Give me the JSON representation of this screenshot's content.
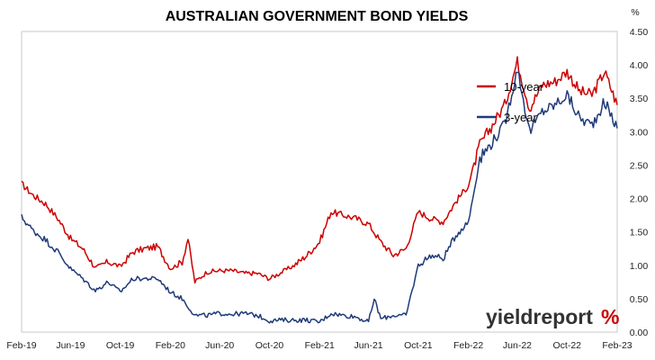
{
  "chart_data": {
    "type": "line",
    "title": "AUSTRALIAN GOVERNMENT BOND YIELDS",
    "y_unit": "%",
    "ylim": [
      0,
      4.5
    ],
    "y_ticks": [
      "0.00",
      "0.50",
      "1.00",
      "1.50",
      "2.00",
      "2.50",
      "3.00",
      "3.50",
      "4.00",
      "4.50"
    ],
    "x_ticks": [
      "Feb-19",
      "Jun-19",
      "Oct-19",
      "Feb-20",
      "Jun-20",
      "Oct-20",
      "Feb-21",
      "Jun-21",
      "Oct-21",
      "Feb-22",
      "Jun-22",
      "Oct-22",
      "Feb-23"
    ],
    "x_range": [
      "2019-02",
      "2023-02"
    ],
    "grid": false,
    "legend_position": "top-right inside plot",
    "series": [
      {
        "name": "10-year",
        "color": "#cc0000",
        "points": [
          [
            "2019-02-01",
            2.22
          ],
          [
            "2019-03-01",
            2.05
          ],
          [
            "2019-04-01",
            1.92
          ],
          [
            "2019-05-01",
            1.7
          ],
          [
            "2019-06-01",
            1.4
          ],
          [
            "2019-07-01",
            1.25
          ],
          [
            "2019-08-01",
            0.96
          ],
          [
            "2019-09-01",
            1.05
          ],
          [
            "2019-10-01",
            0.98
          ],
          [
            "2019-11-01",
            1.2
          ],
          [
            "2019-12-01",
            1.25
          ],
          [
            "2020-01-01",
            1.28
          ],
          [
            "2020-02-01",
            0.95
          ],
          [
            "2020-03-01",
            1.05
          ],
          [
            "2020-03-15",
            1.4
          ],
          [
            "2020-04-01",
            0.75
          ],
          [
            "2020-05-01",
            0.9
          ],
          [
            "2020-06-01",
            0.92
          ],
          [
            "2020-07-01",
            0.92
          ],
          [
            "2020-08-01",
            0.88
          ],
          [
            "2020-09-01",
            0.88
          ],
          [
            "2020-10-01",
            0.8
          ],
          [
            "2020-11-01",
            0.9
          ],
          [
            "2020-12-01",
            1.0
          ],
          [
            "2021-01-01",
            1.15
          ],
          [
            "2021-02-01",
            1.35
          ],
          [
            "2021-03-01",
            1.8
          ],
          [
            "2021-04-01",
            1.75
          ],
          [
            "2021-05-01",
            1.7
          ],
          [
            "2021-06-01",
            1.62
          ],
          [
            "2021-07-01",
            1.35
          ],
          [
            "2021-08-01",
            1.15
          ],
          [
            "2021-09-01",
            1.25
          ],
          [
            "2021-10-01",
            1.8
          ],
          [
            "2021-11-01",
            1.7
          ],
          [
            "2021-12-01",
            1.65
          ],
          [
            "2022-01-01",
            1.95
          ],
          [
            "2022-02-01",
            2.2
          ],
          [
            "2022-03-01",
            2.8
          ],
          [
            "2022-04-01",
            3.1
          ],
          [
            "2022-05-01",
            3.4
          ],
          [
            "2022-06-01",
            4.05
          ],
          [
            "2022-07-01",
            3.35
          ],
          [
            "2022-08-01",
            3.7
          ],
          [
            "2022-09-01",
            3.75
          ],
          [
            "2022-10-01",
            3.9
          ],
          [
            "2022-11-01",
            3.6
          ],
          [
            "2022-12-01",
            3.55
          ],
          [
            "2023-01-01",
            3.9
          ],
          [
            "2023-02-01",
            3.4
          ]
        ]
      },
      {
        "name": "3-year",
        "color": "#1f3a7a",
        "points": [
          [
            "2019-02-01",
            1.72
          ],
          [
            "2019-03-01",
            1.52
          ],
          [
            "2019-04-01",
            1.38
          ],
          [
            "2019-05-01",
            1.2
          ],
          [
            "2019-06-01",
            0.95
          ],
          [
            "2019-07-01",
            0.8
          ],
          [
            "2019-08-01",
            0.62
          ],
          [
            "2019-09-01",
            0.75
          ],
          [
            "2019-10-01",
            0.6
          ],
          [
            "2019-11-01",
            0.8
          ],
          [
            "2019-12-01",
            0.8
          ],
          [
            "2020-01-01",
            0.8
          ],
          [
            "2020-02-01",
            0.6
          ],
          [
            "2020-03-01",
            0.5
          ],
          [
            "2020-04-01",
            0.25
          ],
          [
            "2020-05-01",
            0.25
          ],
          [
            "2020-06-01",
            0.28
          ],
          [
            "2020-07-01",
            0.27
          ],
          [
            "2020-08-01",
            0.28
          ],
          [
            "2020-09-01",
            0.25
          ],
          [
            "2020-10-01",
            0.17
          ],
          [
            "2020-11-01",
            0.18
          ],
          [
            "2020-12-01",
            0.18
          ],
          [
            "2021-01-01",
            0.18
          ],
          [
            "2021-02-01",
            0.15
          ],
          [
            "2021-03-01",
            0.28
          ],
          [
            "2021-04-01",
            0.25
          ],
          [
            "2021-05-01",
            0.23
          ],
          [
            "2021-06-01",
            0.15
          ],
          [
            "2021-06-15",
            0.5
          ],
          [
            "2021-07-01",
            0.2
          ],
          [
            "2021-08-01",
            0.25
          ],
          [
            "2021-09-01",
            0.25
          ],
          [
            "2021-10-01",
            1.0
          ],
          [
            "2021-11-01",
            1.15
          ],
          [
            "2021-12-01",
            1.1
          ],
          [
            "2022-01-01",
            1.45
          ],
          [
            "2022-02-01",
            1.65
          ],
          [
            "2022-03-01",
            2.6
          ],
          [
            "2022-04-01",
            2.85
          ],
          [
            "2022-05-01",
            3.1
          ],
          [
            "2022-06-01",
            3.95
          ],
          [
            "2022-07-01",
            3.0
          ],
          [
            "2022-08-01",
            3.3
          ],
          [
            "2022-09-01",
            3.4
          ],
          [
            "2022-10-01",
            3.55
          ],
          [
            "2022-11-01",
            3.2
          ],
          [
            "2022-12-01",
            3.1
          ],
          [
            "2023-01-01",
            3.45
          ],
          [
            "2023-02-01",
            3.05
          ]
        ]
      }
    ]
  },
  "watermark": {
    "text_main": "yieldreport",
    "text_pct": "%",
    "color_main": "#333333",
    "color_pct": "#cc0000"
  }
}
